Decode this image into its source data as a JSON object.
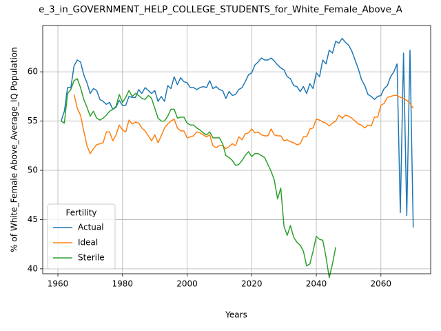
{
  "chart_data": {
    "type": "line",
    "title": "e_3_in_GOVERNMENT_HELP_COLLEGE_STUDENTS_for_White_Female_Above_A",
    "xlabel": "Years",
    "ylabel": "% of White_Female Above_Average_IQ Population",
    "x": [
      1961,
      1962,
      1963,
      1964,
      1965,
      1966,
      1967,
      1968,
      1969,
      1970,
      1971,
      1972,
      1973,
      1974,
      1975,
      1976,
      1977,
      1978,
      1979,
      1980,
      1981,
      1982,
      1983,
      1984,
      1985,
      1986,
      1987,
      1988,
      1989,
      1990,
      1991,
      1992,
      1993,
      1994,
      1995,
      1996,
      1997,
      1998,
      1999,
      2000,
      2001,
      2002,
      2003,
      2004,
      2005,
      2006,
      2007,
      2008,
      2009,
      2010,
      2011,
      2012,
      2013,
      2014,
      2015,
      2016,
      2017,
      2018,
      2019,
      2020,
      2021,
      2022,
      2023,
      2024,
      2025,
      2026,
      2027,
      2028,
      2029,
      2030,
      2031,
      2032,
      2033,
      2034,
      2035,
      2036,
      2037,
      2038,
      2039,
      2040,
      2041,
      2042,
      2043,
      2044,
      2045,
      2046,
      2047,
      2048,
      2049,
      2050,
      2051,
      2052,
      2053,
      2054,
      2055,
      2056,
      2057,
      2058,
      2059,
      2060,
      2061,
      2062,
      2063,
      2064,
      2065,
      2066,
      2067,
      2068,
      2069,
      2070
    ],
    "series": [
      {
        "name": "Actual",
        "color": "#1f77b4",
        "values": [
          55.0,
          56.0,
          58.4,
          58.4,
          60.6,
          61.2,
          61.0,
          59.7,
          58.9,
          57.8,
          58.3,
          58.1,
          57.2,
          57.0,
          56.7,
          56.9,
          56.2,
          56.4,
          57.1,
          56.6,
          56.6,
          57.5,
          57.4,
          57.4,
          58.2,
          57.8,
          58.4,
          58.1,
          57.8,
          58.1,
          57.0,
          57.5,
          57.0,
          58.6,
          58.3,
          59.5,
          58.7,
          59.4,
          59.0,
          58.9,
          58.4,
          58.4,
          58.2,
          58.4,
          58.5,
          58.4,
          59.1,
          58.3,
          58.5,
          58.2,
          58.1,
          57.3,
          58.0,
          57.6,
          57.7,
          58.2,
          58.4,
          59.0,
          59.7,
          59.9,
          60.7,
          61.0,
          61.4,
          61.2,
          61.2,
          61.4,
          61.1,
          60.7,
          60.4,
          60.2,
          59.5,
          59.3,
          58.6,
          58.5,
          58.0,
          58.5,
          57.8,
          58.8,
          58.3,
          59.9,
          59.5,
          61.2,
          60.8,
          62.2,
          61.9,
          63.1,
          62.9,
          63.4,
          63.0,
          62.7,
          62.1,
          61.2,
          60.3,
          59.2,
          58.6,
          57.7,
          57.5,
          57.2,
          57.5,
          57.6,
          58.3,
          58.6,
          59.5,
          60.0,
          60.8,
          45.7,
          61.9,
          45.4,
          62.2,
          44.2
        ]
      },
      {
        "name": "Ideal",
        "color": "#ff7f0e",
        "values": [
          null,
          null,
          null,
          null,
          57.7,
          56.3,
          55.6,
          54.0,
          52.5,
          51.7,
          52.2,
          52.6,
          52.7,
          52.8,
          53.9,
          53.9,
          53.0,
          53.6,
          54.6,
          54.1,
          53.9,
          55.1,
          54.7,
          54.9,
          54.8,
          54.3,
          54.0,
          53.5,
          53.0,
          53.6,
          52.8,
          53.5,
          54.3,
          54.7,
          55.0,
          55.2,
          54.3,
          54.0,
          54.0,
          53.3,
          53.4,
          53.5,
          53.9,
          53.8,
          53.6,
          53.4,
          53.6,
          52.5,
          52.3,
          52.5,
          52.5,
          52.2,
          52.4,
          52.7,
          52.5,
          53.4,
          53.1,
          53.7,
          53.8,
          54.2,
          53.8,
          53.9,
          53.6,
          53.5,
          53.5,
          54.2,
          53.6,
          53.5,
          53.5,
          53.0,
          53.1,
          52.9,
          52.8,
          52.6,
          52.7,
          53.4,
          53.4,
          54.2,
          54.3,
          55.2,
          55.1,
          54.9,
          54.8,
          54.5,
          54.8,
          55.0,
          55.6,
          55.3,
          55.6,
          55.5,
          55.3,
          55.0,
          54.7,
          54.6,
          54.3,
          54.6,
          54.5,
          55.4,
          55.4,
          56.6,
          56.8,
          57.4,
          57.5,
          57.6,
          57.6,
          57.4,
          57.3,
          57.1,
          56.8,
          56.3
        ]
      },
      {
        "name": "Sterile",
        "color": "#2ca02c",
        "values": [
          55.0,
          54.8,
          57.8,
          58.2,
          59.1,
          59.3,
          58.4,
          57.2,
          56.4,
          55.5,
          56.0,
          55.3,
          55.1,
          55.3,
          55.6,
          56.0,
          56.2,
          56.5,
          57.7,
          56.9,
          57.4,
          58.1,
          57.5,
          57.8,
          57.6,
          57.3,
          57.2,
          57.6,
          57.3,
          56.3,
          55.3,
          55.0,
          55.0,
          55.5,
          56.2,
          56.2,
          55.3,
          55.4,
          55.4,
          54.8,
          54.6,
          54.6,
          54.3,
          54.1,
          53.8,
          53.6,
          53.9,
          53.3,
          53.3,
          53.3,
          52.7,
          51.5,
          51.3,
          51.0,
          50.5,
          50.6,
          51.0,
          51.5,
          51.9,
          51.4,
          51.7,
          51.7,
          51.5,
          51.3,
          50.6,
          49.9,
          49.0,
          47.1,
          48.2,
          44.3,
          43.4,
          44.4,
          43.2,
          42.7,
          42.4,
          41.8,
          40.3,
          40.5,
          41.8,
          43.3,
          43.0,
          42.9,
          41.2,
          39.1,
          40.5,
          42.2,
          null,
          null,
          null,
          null,
          null,
          null,
          null,
          null,
          null,
          null,
          null,
          null,
          null,
          null,
          null,
          null,
          null,
          null,
          null,
          null,
          null,
          null,
          null,
          null
        ]
      }
    ],
    "xlim": [
      1955.3,
      2075.4
    ],
    "ylim": [
      39.5,
      64.7
    ],
    "xticks": [
      1960,
      1980,
      2000,
      2020,
      2040,
      2060
    ],
    "yticks": [
      40,
      45,
      50,
      55,
      60
    ],
    "grid": true,
    "legend": {
      "title": "Fertility",
      "loc": "lower left"
    }
  }
}
